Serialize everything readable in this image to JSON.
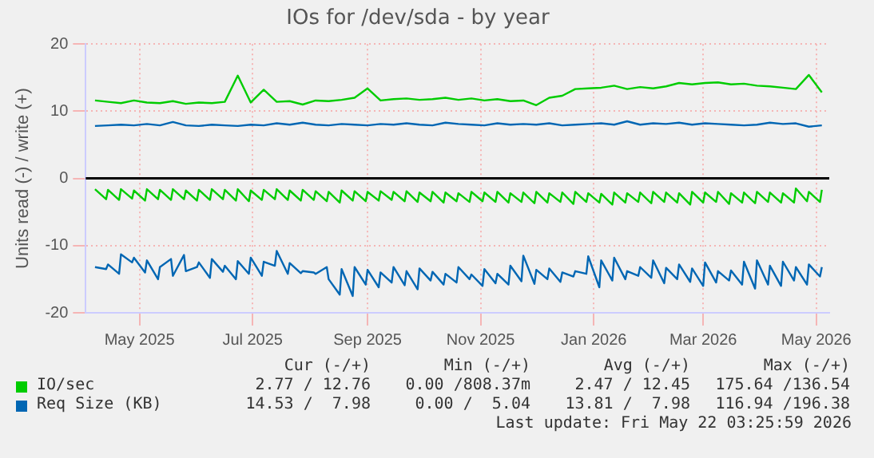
{
  "chart_data": {
    "type": "line",
    "title": "IOs for /dev/sda - by year",
    "ylabel": "Units read (-) / write (+)",
    "x": [
      "2025-04-07",
      "2025-04-13",
      "2025-04-14",
      "2025-04-20",
      "2025-04-21",
      "2025-04-27",
      "2025-04-28",
      "2025-05-04",
      "2025-05-05",
      "2025-05-11",
      "2025-05-12",
      "2025-05-18",
      "2025-05-19",
      "2025-05-25",
      "2025-05-26",
      "2025-06-01",
      "2025-06-02",
      "2025-06-08",
      "2025-06-09",
      "2025-06-15",
      "2025-06-16",
      "2025-06-22",
      "2025-06-23",
      "2025-06-29",
      "2025-06-30",
      "2025-07-06",
      "2025-07-07",
      "2025-07-13",
      "2025-07-14",
      "2025-07-20",
      "2025-07-21",
      "2025-07-27",
      "2025-07-28",
      "2025-08-03",
      "2025-08-04",
      "2025-08-10",
      "2025-08-11",
      "2025-08-17",
      "2025-08-18",
      "2025-08-24",
      "2025-08-25",
      "2025-08-31",
      "2025-09-01",
      "2025-09-07",
      "2025-09-08",
      "2025-09-14",
      "2025-09-15",
      "2025-09-21",
      "2025-09-22",
      "2025-09-28",
      "2025-09-29",
      "2025-10-05",
      "2025-10-06",
      "2025-10-12",
      "2025-10-13",
      "2025-10-19",
      "2025-10-20",
      "2025-10-26",
      "2025-10-27",
      "2025-11-02",
      "2025-11-03",
      "2025-11-09",
      "2025-11-10",
      "2025-11-16",
      "2025-11-17",
      "2025-11-23",
      "2025-11-24",
      "2025-11-30",
      "2025-12-01",
      "2025-12-07",
      "2025-12-08",
      "2025-12-14",
      "2025-12-15",
      "2025-12-21",
      "2025-12-22",
      "2025-12-28",
      "2025-12-29",
      "2026-01-04",
      "2026-01-05",
      "2026-01-11",
      "2026-01-12",
      "2026-01-18",
      "2026-01-19",
      "2026-01-25",
      "2026-01-26",
      "2026-02-01",
      "2026-02-02",
      "2026-02-08",
      "2026-02-09",
      "2026-02-15",
      "2026-02-16",
      "2026-02-22",
      "2026-02-23",
      "2026-03-01",
      "2026-03-02",
      "2026-03-08",
      "2026-03-09",
      "2026-03-15",
      "2026-03-16",
      "2026-03-22",
      "2026-03-23",
      "2026-03-29",
      "2026-03-30",
      "2026-04-05",
      "2026-04-06",
      "2026-04-12",
      "2026-04-13",
      "2026-04-19",
      "2026-04-20",
      "2026-04-26",
      "2026-04-27",
      "2026-05-03",
      "2026-05-04"
    ],
    "series": [
      {
        "name": "IO/sec",
        "color": "#00cc00",
        "x": [
          "2025-04-07",
          "2025-04-14",
          "2025-04-21",
          "2025-04-28",
          "2025-05-05",
          "2025-05-12",
          "2025-05-19",
          "2025-05-26",
          "2025-06-02",
          "2025-06-09",
          "2025-06-16",
          "2025-06-23",
          "2025-06-30",
          "2025-07-07",
          "2025-07-14",
          "2025-07-21",
          "2025-07-28",
          "2025-08-04",
          "2025-08-11",
          "2025-08-18",
          "2025-08-25",
          "2025-09-01",
          "2025-09-08",
          "2025-09-15",
          "2025-09-22",
          "2025-09-29",
          "2025-10-06",
          "2025-10-13",
          "2025-10-20",
          "2025-10-27",
          "2025-11-03",
          "2025-11-10",
          "2025-11-17",
          "2025-11-24",
          "2025-12-01",
          "2025-12-08",
          "2025-12-15",
          "2025-12-22",
          "2025-12-29",
          "2026-01-05",
          "2026-01-12",
          "2026-01-19",
          "2026-01-26",
          "2026-02-02",
          "2026-02-09",
          "2026-02-16",
          "2026-02-23",
          "2026-03-02",
          "2026-03-09",
          "2026-03-16",
          "2026-03-23",
          "2026-03-30",
          "2026-04-06",
          "2026-04-13",
          "2026-04-20",
          "2026-04-27",
          "2026-05-04"
        ],
        "values": [
          11.6,
          11.4,
          11.2,
          11.6,
          11.3,
          11.2,
          11.5,
          11.1,
          11.3,
          11.2,
          11.4,
          15.3,
          11.3,
          13.2,
          11.4,
          11.5,
          11.0,
          11.6,
          11.5,
          11.7,
          12.0,
          13.4,
          11.6,
          11.8,
          11.9,
          11.7,
          11.8,
          12.0,
          11.7,
          11.9,
          11.6,
          11.8,
          11.5,
          11.6,
          10.9,
          12.0,
          12.3,
          13.3,
          13.4,
          13.5,
          13.8,
          13.3,
          13.6,
          13.4,
          13.7,
          14.2,
          14.0,
          14.2,
          14.3,
          14.0,
          14.1,
          13.8,
          13.7,
          13.5,
          13.3,
          15.4,
          12.8
        ]
      },
      {
        "color": "#00cc00",
        "values": [
          -1.6,
          -3.1,
          -1.7,
          -3.2,
          -1.6,
          -3.0,
          -1.8,
          -3.3,
          -1.6,
          -3.1,
          -1.7,
          -3.2,
          -1.6,
          -3.1,
          -1.8,
          -3.3,
          -1.7,
          -3.2,
          -1.6,
          -3.1,
          -1.7,
          -3.3,
          -1.6,
          -3.4,
          -1.8,
          -3.2,
          -1.7,
          -3.1,
          -1.6,
          -3.2,
          -1.8,
          -3.3,
          -1.7,
          -3.2,
          -1.9,
          -3.4,
          -2.0,
          -3.6,
          -1.8,
          -3.3,
          -1.9,
          -3.4,
          -2.0,
          -3.3,
          -1.9,
          -3.2,
          -2.0,
          -3.4,
          -1.9,
          -3.5,
          -2.1,
          -3.4,
          -2.0,
          -3.6,
          -2.1,
          -3.4,
          -2.2,
          -3.5,
          -2.0,
          -3.4,
          -2.1,
          -3.5,
          -2.0,
          -3.6,
          -2.2,
          -3.5,
          -2.1,
          -3.7,
          -2.0,
          -3.6,
          -2.2,
          -3.5,
          -2.1,
          -3.8,
          -2.0,
          -3.5,
          -2.2,
          -3.6,
          -2.3,
          -3.9,
          -2.1,
          -3.6,
          -2.2,
          -3.5,
          -2.1,
          -3.7,
          -2.0,
          -3.5,
          -2.1,
          -3.6,
          -2.2,
          -3.9,
          -2.0,
          -3.6,
          -2.1,
          -3.5,
          -2.0,
          -3.8,
          -2.2,
          -3.6,
          -2.1,
          -3.7,
          -2.0,
          -3.5,
          -2.1,
          -3.6,
          -2.2,
          -3.6,
          -1.5,
          -3.4,
          -2.0,
          -3.5,
          -1.7
        ]
      },
      {
        "name": "Req Size (KB)",
        "color": "#0066b3",
        "x": [
          "2025-04-07",
          "2025-04-14",
          "2025-04-21",
          "2025-04-28",
          "2025-05-05",
          "2025-05-12",
          "2025-05-19",
          "2025-05-26",
          "2025-06-02",
          "2025-06-09",
          "2025-06-16",
          "2025-06-23",
          "2025-06-30",
          "2025-07-07",
          "2025-07-14",
          "2025-07-21",
          "2025-07-28",
          "2025-08-04",
          "2025-08-11",
          "2025-08-18",
          "2025-08-25",
          "2025-09-01",
          "2025-09-08",
          "2025-09-15",
          "2025-09-22",
          "2025-09-29",
          "2025-10-06",
          "2025-10-13",
          "2025-10-20",
          "2025-10-27",
          "2025-11-03",
          "2025-11-10",
          "2025-11-17",
          "2025-11-24",
          "2025-12-01",
          "2025-12-08",
          "2025-12-15",
          "2025-12-22",
          "2025-12-29",
          "2026-01-05",
          "2026-01-12",
          "2026-01-19",
          "2026-01-26",
          "2026-02-02",
          "2026-02-09",
          "2026-02-16",
          "2026-02-23",
          "2026-03-02",
          "2026-03-09",
          "2026-03-16",
          "2026-03-23",
          "2026-03-30",
          "2026-04-06",
          "2026-04-13",
          "2026-04-20",
          "2026-04-27",
          "2026-05-04"
        ],
        "values": [
          7.8,
          7.9,
          8.0,
          7.9,
          8.1,
          7.9,
          8.4,
          7.9,
          7.8,
          8.0,
          7.9,
          7.8,
          8.0,
          7.9,
          8.2,
          8.0,
          8.3,
          8.0,
          7.9,
          8.1,
          8.0,
          7.9,
          8.1,
          8.0,
          8.2,
          8.0,
          7.9,
          8.3,
          8.1,
          8.0,
          7.9,
          8.2,
          8.0,
          8.1,
          8.0,
          8.2,
          7.9,
          8.0,
          8.1,
          8.2,
          8.0,
          8.5,
          8.0,
          8.2,
          8.1,
          8.3,
          8.0,
          8.2,
          8.1,
          8.0,
          7.9,
          8.0,
          8.3,
          8.1,
          8.2,
          7.7,
          7.9
        ]
      },
      {
        "color": "#0066b3",
        "values": [
          -13.2,
          -13.5,
          -12.8,
          -14.2,
          -11.3,
          -12.5,
          -11.8,
          -14.0,
          -12.2,
          -15.0,
          -13.2,
          -12.0,
          -14.5,
          -11.4,
          -13.8,
          -13.2,
          -12.5,
          -14.8,
          -12.0,
          -13.9,
          -13.0,
          -15.0,
          -12.3,
          -14.2,
          -11.8,
          -14.5,
          -12.4,
          -13.0,
          -10.8,
          -14.2,
          -12.6,
          -14.1,
          -13.8,
          -14.0,
          -14.2,
          -13.2,
          -15.0,
          -17.3,
          -13.5,
          -17.5,
          -13.2,
          -15.8,
          -13.6,
          -16.2,
          -14.0,
          -15.5,
          -13.2,
          -15.9,
          -13.8,
          -16.5,
          -13.4,
          -15.2,
          -13.9,
          -15.8,
          -14.2,
          -15.5,
          -13.2,
          -15.0,
          -14.3,
          -16.0,
          -13.5,
          -15.6,
          -14.2,
          -15.8,
          -13.0,
          -15.3,
          -11.5,
          -15.7,
          -13.6,
          -15.0,
          -13.4,
          -15.4,
          -14.0,
          -14.6,
          -13.8,
          -14.2,
          -11.6,
          -16.2,
          -12.2,
          -15.2,
          -11.8,
          -15.0,
          -13.8,
          -14.5,
          -13.2,
          -14.8,
          -12.2,
          -15.6,
          -13.3,
          -15.0,
          -12.8,
          -15.4,
          -13.4,
          -16.0,
          -12.5,
          -15.5,
          -13.8,
          -15.2,
          -13.7,
          -15.8,
          -12.4,
          -16.4,
          -12.2,
          -15.8,
          -13.0,
          -16.0,
          -12.4,
          -15.2,
          -13.2,
          -15.8,
          -12.8,
          -14.6,
          -13.2
        ]
      }
    ],
    "xlim": [
      "2025-04-02",
      "2026-05-08"
    ],
    "xticks": [
      {
        "value": "2025-05-01",
        "label": "May 2025"
      },
      {
        "value": "2025-07-01",
        "label": "Jul 2025"
      },
      {
        "value": "2025-09-01",
        "label": "Sep 2025"
      },
      {
        "value": "2025-11-01",
        "label": "Nov 2025"
      },
      {
        "value": "2026-01-01",
        "label": "Jan 2026"
      },
      {
        "value": "2026-03-01",
        "label": "Mar 2026"
      },
      {
        "value": "2026-05-01",
        "label": "May 2026"
      }
    ],
    "ylim": [
      -20,
      20
    ],
    "yticks": [
      -20,
      -10,
      0,
      10,
      20
    ],
    "ref_lines": [
      {
        "axis": "y",
        "value": 0,
        "color": "#000000"
      }
    ],
    "grid": true,
    "legend": "bottom",
    "marker": "none",
    "line_style": "solid",
    "annotations": [
      "Cur (-/+)",
      "Min (-/+)",
      "Avg (-/+)",
      "Max (-/+)",
      "2.77 / 12.76",
      "0.00 /808.37m",
      "2.47 / 12.45",
      "175.64 /136.54",
      "14.53 /  7.98",
      "0.00 /  5.04",
      "13.81 /  7.98",
      "116.94 /196.38",
      "Last update: Fri May 22 03:25:59 2026"
    ]
  }
}
